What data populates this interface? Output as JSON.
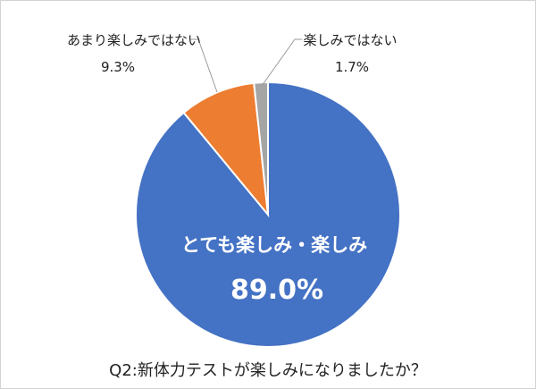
{
  "chart_data": {
    "type": "pie",
    "start_angle": "top (12 o'clock), clockwise",
    "slices": [
      {
        "label": "とても楽しみ・楽しみ",
        "value": 89.0,
        "display": "89.0%",
        "color": "#4472C4"
      },
      {
        "label": "あまり楽しみではない",
        "value": 9.3,
        "display": "9.3%",
        "color": "#ED7D31"
      },
      {
        "label": "楽しみではない",
        "value": 1.7,
        "display": "1.7%",
        "color": "#A5A5A5"
      }
    ],
    "caption": "Q2:新体力テストが楽しみになりましたか？"
  }
}
